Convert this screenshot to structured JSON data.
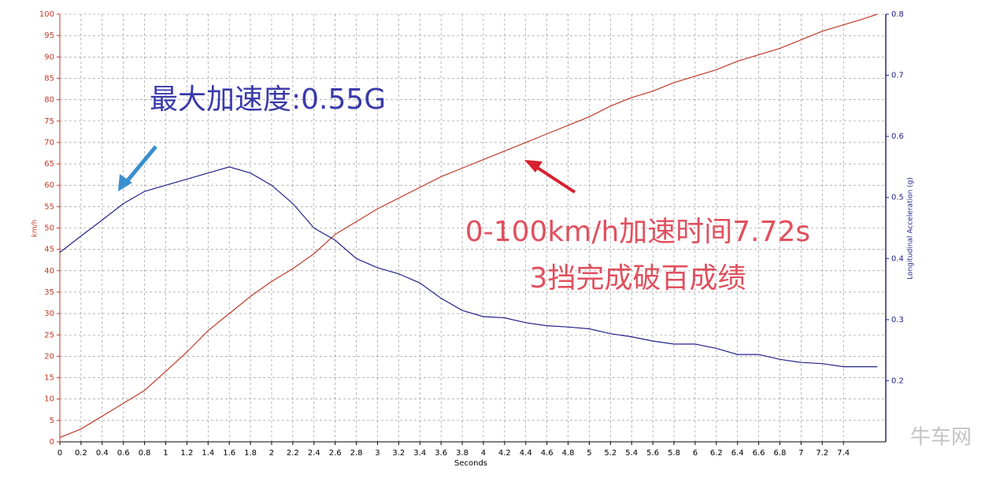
{
  "chart_data": {
    "type": "line",
    "x_label": "Seconds",
    "y_label": "km/h",
    "y2_label": "Longitudinal Acceleration (g)",
    "x": [
      0,
      0.2,
      0.4,
      0.6,
      0.8,
      1,
      1.2,
      1.4,
      1.6,
      1.8,
      2,
      2.2,
      2.4,
      2.6,
      2.8,
      3,
      3.2,
      3.4,
      3.6,
      3.8,
      4,
      4.2,
      4.4,
      4.6,
      4.8,
      5,
      5.2,
      5.4,
      5.6,
      5.8,
      6,
      6.2,
      6.4,
      6.6,
      6.8,
      7,
      7.2,
      7.4,
      7.6,
      7.72
    ],
    "series": [
      {
        "name": "km/h",
        "color": "#c0392b",
        "axis": "y",
        "values": [
          1,
          3,
          6,
          9,
          12,
          16.5,
          21,
          26,
          30,
          34,
          37.5,
          40.5,
          44,
          48.5,
          51.5,
          54.5,
          57,
          59.5,
          62,
          64,
          66,
          68,
          70,
          72,
          74,
          76,
          78.5,
          80.5,
          82,
          84,
          85.5,
          87,
          89,
          90.5,
          92,
          94,
          96,
          97.5,
          99,
          100
        ]
      },
      {
        "name": "Longitudinal Acceleration (g)",
        "color": "#22228a",
        "axis": "y2",
        "values": [
          0.41,
          0.437,
          0.463,
          0.49,
          0.51,
          0.52,
          0.53,
          0.54,
          0.55,
          0.54,
          0.52,
          0.49,
          0.45,
          0.43,
          0.4,
          0.385,
          0.375,
          0.36,
          0.335,
          0.315,
          0.305,
          0.303,
          0.295,
          0.29,
          0.288,
          0.285,
          0.277,
          0.272,
          0.265,
          0.26,
          0.26,
          0.253,
          0.243,
          0.243,
          0.235,
          0.23,
          0.228,
          0.223,
          0.223,
          0.223
        ]
      }
    ],
    "xlim": [
      0,
      7.8
    ],
    "xticks": [
      0,
      0.2,
      0.4,
      0.6,
      0.8,
      1,
      1.2,
      1.4,
      1.6,
      1.8,
      2,
      2.2,
      2.4,
      2.6,
      2.8,
      3,
      3.2,
      3.4,
      3.6,
      3.8,
      4,
      4.2,
      4.4,
      4.6,
      4.8,
      5,
      5.2,
      5.4,
      5.6,
      5.8,
      6,
      6.2,
      6.4,
      6.6,
      6.8,
      7,
      7.2,
      7.4
    ],
    "ylim": [
      0,
      100
    ],
    "yticks": [
      0,
      5,
      10,
      15,
      20,
      25,
      30,
      35,
      40,
      45,
      50,
      55,
      60,
      65,
      70,
      75,
      80,
      85,
      90,
      95,
      100
    ],
    "y2lim": [
      0.1,
      0.8
    ],
    "y2ticks": [
      0.2,
      0.3,
      0.4,
      0.5,
      0.6,
      0.7,
      0.8
    ],
    "grid": true,
    "annotations": [
      "最大加速度:0.55G",
      "0-100km/h加速时间7.72s",
      "3挡完成破百成绩"
    ],
    "watermark": "牛车网"
  }
}
